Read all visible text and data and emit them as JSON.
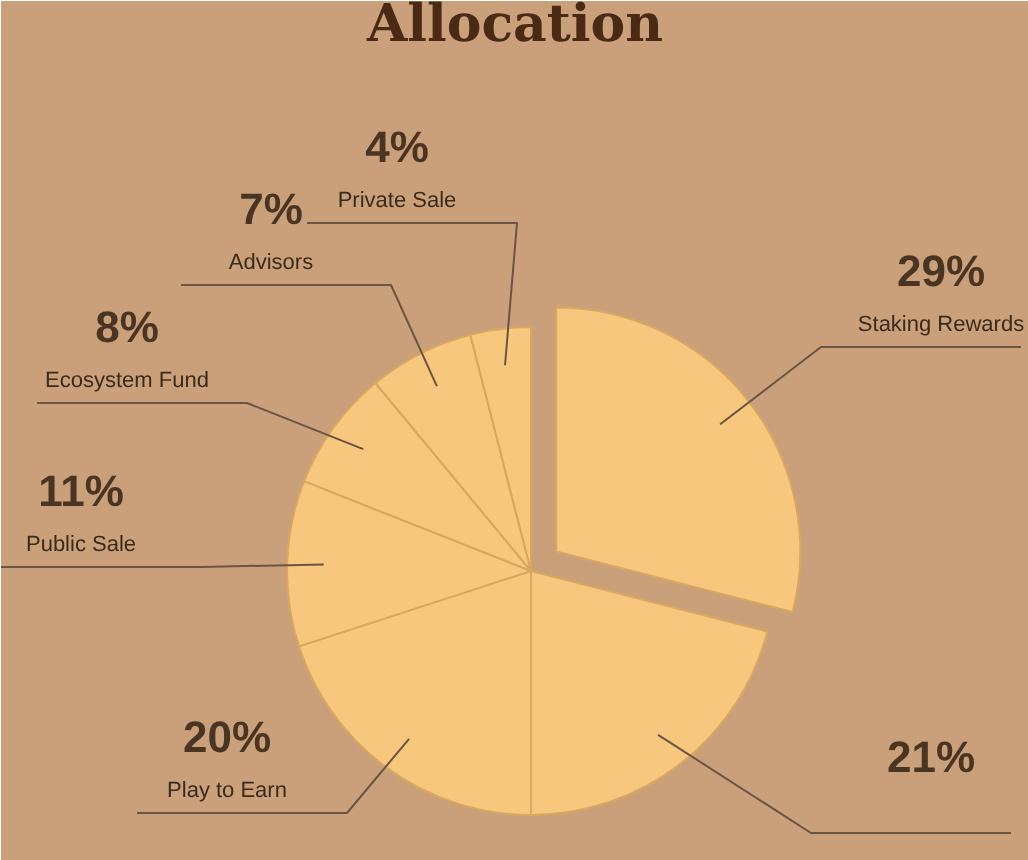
{
  "chart_data": {
    "type": "pie",
    "title": "Allocation",
    "categories": [
      "Staking Rewards",
      null,
      "Play to Earn",
      "Public Sale",
      "Ecosystem Fund",
      "Advisors",
      "Private Sale"
    ],
    "values": [
      29,
      21,
      20,
      11,
      8,
      7,
      4
    ],
    "value_labels": [
      "29%",
      "21%",
      "20%",
      "11%",
      "8%",
      "7%",
      "4%"
    ],
    "colors": [
      "#f7c77d",
      "#f7c77d",
      "#f7c77d",
      "#f7c77d",
      "#f7c77d",
      "#f7c77d",
      "#f7c77d"
    ]
  }
}
